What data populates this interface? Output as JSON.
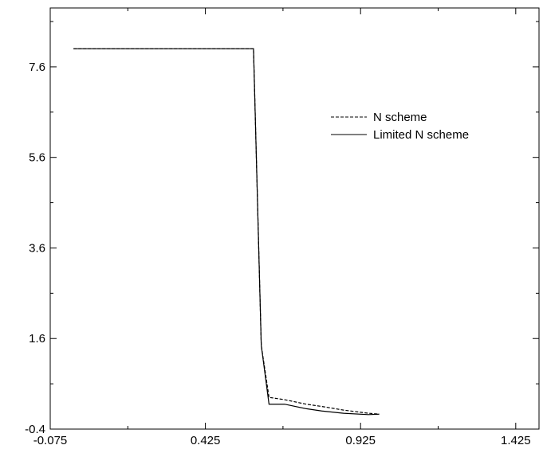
{
  "chart_data": {
    "type": "line",
    "title": "",
    "xlabel": "",
    "ylabel": "",
    "xlim": [
      -0.075,
      1.5
    ],
    "ylim": [
      -0.4,
      8.9
    ],
    "xticks": [
      -0.075,
      0.425,
      0.925,
      1.425
    ],
    "xtick_labels": [
      "-0.075",
      "0.425",
      "0.925",
      "1.425"
    ],
    "yticks": [
      -0.4,
      1.6,
      3.6,
      5.6,
      7.6
    ],
    "ytick_labels": [
      "-0.4",
      "1.6",
      "3.6",
      "5.6",
      "7.6"
    ],
    "grid": false,
    "legend_position": "upper-right",
    "series": [
      {
        "name": "N scheme",
        "line_style": "dashed",
        "x": [
          0.0,
          0.58,
          0.605,
          0.63,
          0.68,
          0.75,
          0.8,
          0.87,
          0.95,
          0.985
        ],
        "y": [
          8.0,
          8.0,
          1.45,
          0.3,
          0.25,
          0.15,
          0.1,
          0.02,
          -0.05,
          -0.07
        ]
      },
      {
        "name": "Limited N scheme",
        "line_style": "solid",
        "x": [
          0.0,
          0.58,
          0.605,
          0.63,
          0.68,
          0.75,
          0.8,
          0.87,
          0.95,
          0.985
        ],
        "y": [
          8.0,
          8.0,
          1.45,
          0.15,
          0.15,
          0.05,
          0.0,
          -0.05,
          -0.08,
          -0.07
        ]
      }
    ]
  }
}
